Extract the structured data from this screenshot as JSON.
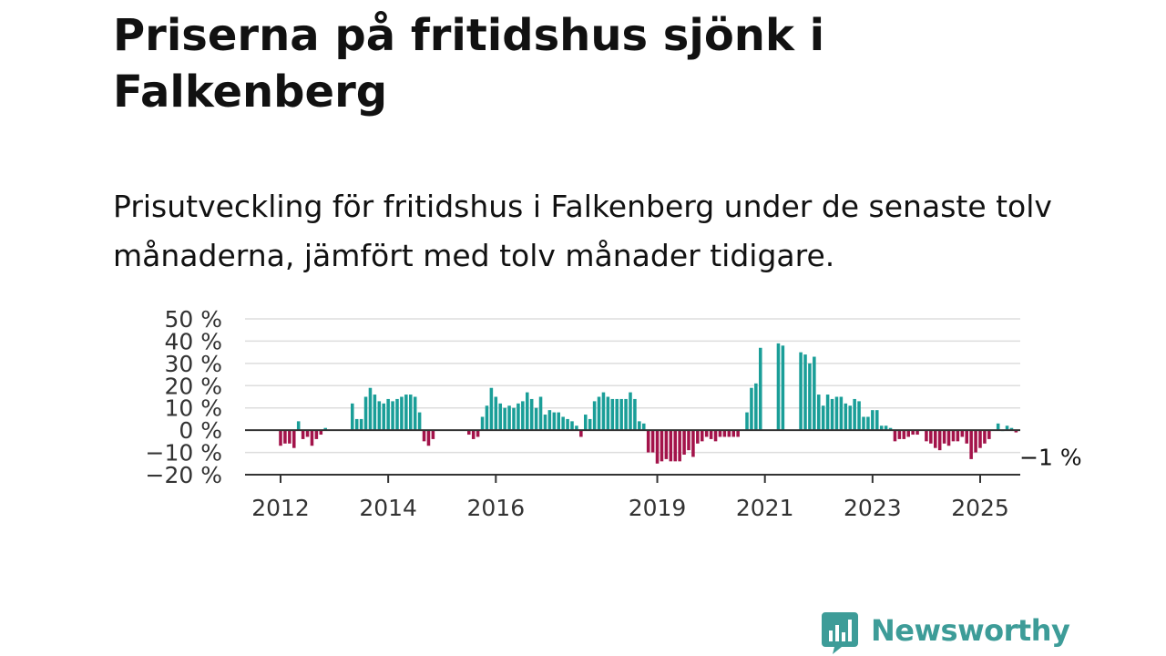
{
  "title": "Priserna på fritidshus sjönk i Falkenberg",
  "subtitle": "Prisutveckling för fritidshus i Falkenberg under de senaste tolv månaderna, jämfört med tolv månader tidigare.",
  "brand": {
    "name": "Newsworthy",
    "color": "#3d9c98"
  },
  "chart_data": {
    "type": "bar",
    "start": [
      2011,
      9
    ],
    "ylim": [
      -20,
      50
    ],
    "yticks": [
      50,
      40,
      30,
      20,
      10,
      0,
      -10,
      -20
    ],
    "ytick_labels": [
      "50 %",
      "40 %",
      "30 %",
      "20 %",
      "10 %",
      "0 %",
      "−10 %",
      "−20 %"
    ],
    "xticks": [
      2012,
      2014,
      2016,
      2019,
      2021,
      2023,
      2025
    ],
    "grid": true,
    "colors": {
      "positive": "#1a9e98",
      "negative": "#a3134a"
    },
    "annotation": {
      "text": "−1 %"
    },
    "values": [
      null,
      null,
      null,
      null,
      -7,
      -6,
      -6,
      -8,
      4,
      -4,
      -3,
      -7,
      -4,
      -2,
      1,
      null,
      null,
      null,
      null,
      null,
      12,
      5,
      5,
      15,
      19,
      16,
      13,
      12,
      14,
      13,
      14,
      15,
      16,
      16,
      15,
      8,
      -5,
      -7,
      -4,
      null,
      null,
      null,
      null,
      null,
      null,
      null,
      -2,
      -4,
      -3,
      6,
      11,
      19,
      15,
      12,
      10,
      11,
      10,
      12,
      13,
      17,
      14,
      10,
      15,
      7,
      9,
      8,
      8,
      6,
      5,
      4,
      2,
      -3,
      7,
      5,
      13,
      15,
      17,
      15,
      14,
      14,
      14,
      14,
      17,
      14,
      4,
      3,
      -10,
      -10,
      -15,
      -14,
      -13,
      -14,
      -14,
      -14,
      -11,
      -9,
      -12,
      -6,
      -5,
      -3,
      -4,
      -5,
      -3,
      -3,
      -3,
      -3,
      -3,
      null,
      8,
      19,
      21,
      37,
      null,
      null,
      null,
      39,
      38,
      null,
      null,
      null,
      35,
      34,
      30,
      33,
      16,
      11,
      16,
      14,
      15,
      15,
      12,
      11,
      14,
      13,
      6,
      6,
      9,
      9,
      2,
      2,
      1,
      -5,
      -4,
      -4,
      -3,
      -2,
      -2,
      null,
      -5,
      -6,
      -8,
      -9,
      -6,
      -7,
      -5,
      -5,
      -3,
      -6,
      -13,
      -10,
      -8,
      -6,
      -4,
      null,
      3,
      0,
      2,
      1,
      -1
    ]
  }
}
